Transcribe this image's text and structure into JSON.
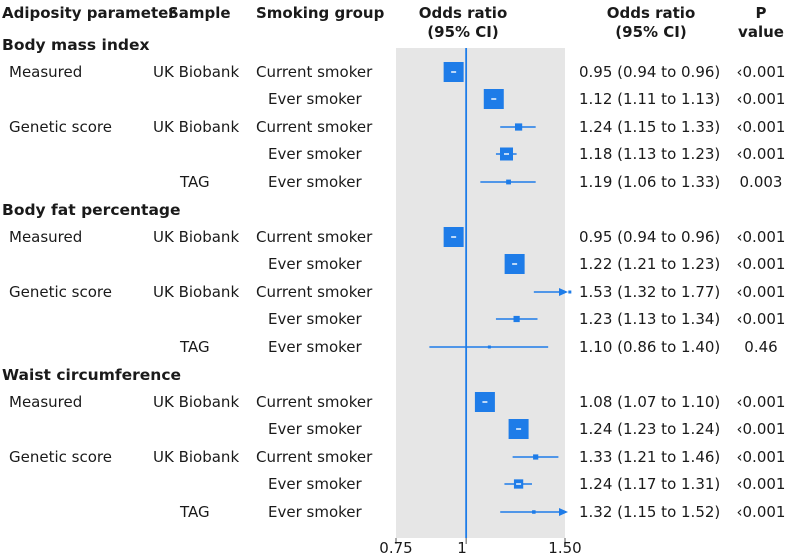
{
  "headers": {
    "parameter": "Adiposity parameter",
    "sample": "Sample",
    "group": "Smoking group",
    "or_plot_line1": "Odds ratio",
    "or_plot_line2": "(95% CI)",
    "or_text_line1": "Odds ratio",
    "or_text_line2": "(95% CI)",
    "p_line1": "P",
    "p_line2": "value"
  },
  "sections": [
    {
      "title": "Body mass index",
      "rows": [
        {
          "parameter": "Measured",
          "sample": "UK Biobank",
          "group": "Current smoker",
          "or_text": "0.95 (0.94 to 0.96)",
          "p": "‹0.001"
        },
        {
          "parameter": "",
          "sample": "",
          "group": "Ever smoker",
          "or_text": "1.12 (1.11 to 1.13)",
          "p": "‹0.001"
        },
        {
          "parameter": "Genetic score",
          "sample": "UK Biobank",
          "group": "Current smoker",
          "or_text": "1.24 (1.15 to 1.33)",
          "p": "‹0.001"
        },
        {
          "parameter": "",
          "sample": "",
          "group": "Ever smoker",
          "or_text": "1.18 (1.13 to 1.23)",
          "p": "‹0.001"
        },
        {
          "parameter": "",
          "sample": "TAG",
          "group": "Ever smoker",
          "or_text": "1.19 (1.06 to 1.33)",
          "p": "0.003"
        }
      ]
    },
    {
      "title": "Body fat percentage",
      "rows": [
        {
          "parameter": "Measured",
          "sample": "UK Biobank",
          "group": "Current smoker",
          "or_text": "0.95 (0.94 to 0.96)",
          "p": "‹0.001"
        },
        {
          "parameter": "",
          "sample": "",
          "group": "Ever smoker",
          "or_text": "1.22 (1.21 to 1.23)",
          "p": "‹0.001"
        },
        {
          "parameter": "Genetic score",
          "sample": "UK Biobank",
          "group": "Current smoker",
          "or_text": "1.53 (1.32 to 1.77)",
          "p": "‹0.001"
        },
        {
          "parameter": "",
          "sample": "",
          "group": "Ever smoker",
          "or_text": "1.23 (1.13 to 1.34)",
          "p": "‹0.001"
        },
        {
          "parameter": "",
          "sample": "TAG",
          "group": "Ever smoker",
          "or_text": "1.10 (0.86 to 1.40)",
          "p": "0.46"
        }
      ]
    },
    {
      "title": "Waist circumference",
      "rows": [
        {
          "parameter": "Measured",
          "sample": "UK Biobank",
          "group": "Current smoker",
          "or_text": "1.08 (1.07 to 1.10)",
          "p": "‹0.001"
        },
        {
          "parameter": "",
          "sample": "",
          "group": "Ever smoker",
          "or_text": "1.24 (1.23 to 1.24)",
          "p": "‹0.001"
        },
        {
          "parameter": "Genetic score",
          "sample": "UK Biobank",
          "group": "Current smoker",
          "or_text": "1.33 (1.21 to 1.46)",
          "p": "‹0.001"
        },
        {
          "parameter": "",
          "sample": "",
          "group": "Ever smoker",
          "or_text": "1.24 (1.17 to 1.31)",
          "p": "‹0.001"
        },
        {
          "parameter": "",
          "sample": "TAG",
          "group": "Ever smoker",
          "or_text": "1.32 (1.15 to 1.52)",
          "p": "‹0.001"
        }
      ]
    }
  ],
  "chart_data": {
    "type": "forest",
    "xlim": [
      0.75,
      1.5
    ],
    "x_ticks": [
      0.75,
      1,
      1.5
    ],
    "x_tick_labels": [
      "0.75",
      "1",
      "1.50"
    ],
    "reference_line": 1,
    "log_scale": true,
    "colors": {
      "marker": "#1e7ce8",
      "panel": "#e6e6e6",
      "reference": "#1e7ce8"
    },
    "points": [
      {
        "or": 0.95,
        "lo": 0.94,
        "hi": 0.96
      },
      {
        "or": 1.12,
        "lo": 1.11,
        "hi": 1.13
      },
      {
        "or": 1.24,
        "lo": 1.15,
        "hi": 1.33
      },
      {
        "or": 1.18,
        "lo": 1.13,
        "hi": 1.23
      },
      {
        "or": 1.19,
        "lo": 1.06,
        "hi": 1.33
      },
      {
        "or": 0.95,
        "lo": 0.94,
        "hi": 0.96
      },
      {
        "or": 1.22,
        "lo": 1.21,
        "hi": 1.23
      },
      {
        "or": 1.53,
        "lo": 1.32,
        "hi": 1.77,
        "clipped_right": true
      },
      {
        "or": 1.23,
        "lo": 1.13,
        "hi": 1.34
      },
      {
        "or": 1.1,
        "lo": 0.86,
        "hi": 1.4
      },
      {
        "or": 1.08,
        "lo": 1.07,
        "hi": 1.1
      },
      {
        "or": 1.24,
        "lo": 1.23,
        "hi": 1.24
      },
      {
        "or": 1.33,
        "lo": 1.21,
        "hi": 1.46
      },
      {
        "or": 1.24,
        "lo": 1.17,
        "hi": 1.31
      },
      {
        "or": 1.32,
        "lo": 1.15,
        "hi": 1.52,
        "clipped_right": true
      }
    ]
  }
}
